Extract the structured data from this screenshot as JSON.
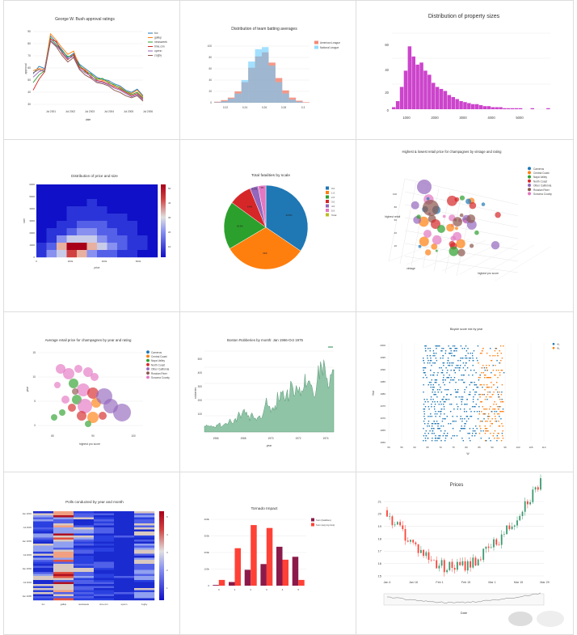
{
  "chart_data": [
    {
      "type": "line",
      "title": "George W. Bush approval ratings",
      "xlabel": "date",
      "ylabel": "approval",
      "yticks": [
        "90",
        "80",
        "70",
        "60",
        "50",
        "40",
        "30"
      ],
      "xticks": [
        "Jul 2001",
        "Jul 2002",
        "Jul 2003",
        "Jul 2004",
        "Jul 2005",
        "Jul 2006"
      ],
      "ylim": [
        25,
        92
      ],
      "series": [
        {
          "name": "fox",
          "color": "#1f77b4",
          "values": [
            53,
            60,
            58,
            88,
            82,
            75,
            68,
            72,
            62,
            58,
            54,
            50,
            48,
            47,
            44,
            42,
            38,
            36,
            39,
            33
          ]
        },
        {
          "name": "gallup",
          "color": "#ff7f0e",
          "values": [
            56,
            58,
            57,
            90,
            84,
            77,
            71,
            74,
            60,
            57,
            52,
            49,
            47,
            46,
            42,
            41,
            37,
            35,
            38,
            32
          ]
        },
        {
          "name": "newsweek",
          "color": "#2ca02c",
          "values": [
            45,
            52,
            56,
            86,
            80,
            74,
            69,
            70,
            61,
            55,
            53,
            48,
            49,
            45,
            43,
            40,
            37,
            34,
            36,
            31
          ]
        },
        {
          "name": "time.cnn",
          "color": "#d62728",
          "values": [
            38,
            48,
            55,
            85,
            83,
            72,
            66,
            71,
            59,
            56,
            50,
            47,
            46,
            44,
            41,
            39,
            36,
            33,
            35,
            30
          ]
        },
        {
          "name": "upenn",
          "color": "#9467bd",
          "values": [
            50,
            55,
            57,
            84,
            79,
            73,
            67,
            69,
            58,
            54,
            51,
            46,
            45,
            43,
            40,
            38,
            35,
            32,
            34,
            29
          ]
        },
        {
          "name": "zogby",
          "color": "#8c564b",
          "values": [
            54,
            57,
            55,
            83,
            78,
            70,
            64,
            68,
            57,
            52,
            49,
            45,
            44,
            42,
            38,
            36,
            33,
            31,
            33,
            28
          ]
        }
      ]
    },
    {
      "type": "bar",
      "title": "Distribution of team batting averages",
      "xticks": [
        "0.22",
        "0.24",
        "0.26",
        "0.28",
        "0.3"
      ],
      "yticks": [
        "100",
        "80",
        "60",
        "40",
        "20",
        "0"
      ],
      "ylim": [
        0,
        110
      ],
      "series": [
        {
          "name": "American League",
          "color": "#ef553b",
          "values": [
            2,
            5,
            10,
            22,
            40,
            68,
            90,
            98,
            78,
            48,
            24,
            10,
            4,
            1
          ]
        },
        {
          "name": "National League",
          "color": "#66ccff",
          "values": [
            1,
            3,
            8,
            18,
            44,
            80,
            104,
            108,
            72,
            40,
            18,
            6,
            2,
            0
          ]
        }
      ]
    },
    {
      "type": "bar",
      "title": "Distribution of property sizes",
      "xticks": [
        "1000",
        "2000",
        "3000",
        "4000",
        "5000"
      ],
      "yticks": [
        "60",
        "40",
        "20",
        "0"
      ],
      "ylim": [
        0,
        75
      ],
      "series": [
        {
          "name": "",
          "color": "#cc44cc",
          "values": [
            2,
            8,
            22,
            38,
            62,
            52,
            44,
            46,
            38,
            34,
            26,
            22,
            20,
            18,
            14,
            12,
            10,
            8,
            7,
            6,
            5,
            5,
            4,
            3,
            3,
            2,
            2,
            2,
            1,
            1,
            1,
            1,
            1,
            0,
            0,
            1,
            0,
            0,
            0,
            1
          ]
        }
      ]
    },
    {
      "type": "heatmap",
      "title": "Distribution of price and size",
      "xlabel": "price",
      "ylabel": "size",
      "xticks": [
        "0",
        "200k",
        "400k",
        "600k"
      ],
      "yticks": [
        "6000",
        "5000",
        "4000",
        "3000",
        "2000",
        "1000",
        "0"
      ],
      "colorbar": [
        "50",
        "40",
        "30",
        "20",
        "10"
      ],
      "values": [
        [
          0,
          0,
          0,
          0,
          0,
          0,
          0,
          0,
          0,
          0,
          0,
          0
        ],
        [
          0,
          0,
          0,
          0,
          0,
          0,
          0,
          0,
          0,
          0,
          0,
          0
        ],
        [
          0,
          0,
          0,
          0,
          0,
          1,
          0,
          0,
          0,
          0,
          0,
          0
        ],
        [
          0,
          0,
          0,
          1,
          1,
          1,
          1,
          0,
          0,
          0,
          0,
          0
        ],
        [
          0,
          0,
          0,
          1,
          2,
          2,
          2,
          1,
          1,
          0,
          0,
          0
        ],
        [
          0,
          0,
          1,
          2,
          3,
          4,
          3,
          2,
          1,
          1,
          0,
          0
        ],
        [
          0,
          1,
          2,
          5,
          7,
          6,
          5,
          3,
          2,
          1,
          0,
          0
        ],
        [
          0,
          2,
          6,
          15,
          18,
          12,
          8,
          5,
          3,
          1,
          1,
          0
        ],
        [
          1,
          5,
          20,
          52,
          45,
          25,
          12,
          6,
          3,
          2,
          1,
          0
        ],
        [
          1,
          6,
          18,
          30,
          20,
          10,
          5,
          3,
          2,
          1,
          0,
          0
        ]
      ]
    },
    {
      "type": "pie",
      "title": "Total fatalities by scale",
      "legend": [
        "0.0",
        "1.0",
        "2.0",
        "3.0",
        "4.0",
        "5.0",
        "Total"
      ],
      "values": [
        34.5,
        32.0,
        18.5,
        8.8,
        3.2,
        3.0
      ],
      "labels": [
        "34.5%",
        "32%",
        "18.5%",
        "8.8%",
        "3.2%",
        "3%"
      ],
      "colors": [
        "#1f77b4",
        "#ff7f0e",
        "#2ca02c",
        "#d62728",
        "#9467bd",
        "#e377c2"
      ]
    },
    {
      "type": "scatter",
      "title": "Highest & lowest retail price for champagnes by vintage and rating",
      "labels": {
        "x": "vintage",
        "y": "highest retail",
        "z": "highest pro score"
      },
      "legend": [
        "Carneros",
        "Central Coast",
        "Napa Valley",
        "North Coast",
        "Other California",
        "Russian River",
        "Sonoma County"
      ],
      "colors": [
        "#1f77b4",
        "#ff7f0e",
        "#2ca02c",
        "#d62728",
        "#9467bd",
        "#8c564b",
        "#e377c2"
      ],
      "yticks": [
        "100",
        "80",
        "60",
        "40",
        "20"
      ]
    },
    {
      "type": "scatter",
      "title": "Average retail price for champagnes by year and rating",
      "xlabel": "highest pro score",
      "ylabel": "year",
      "xticks": [
        "80",
        "90",
        "100"
      ],
      "yticks": [
        "15",
        "10",
        "5",
        "0"
      ],
      "legend": [
        "Carneros",
        "Central Coast",
        "Napa Valley",
        "North Coast",
        "Other California",
        "Russian River",
        "Sonoma County"
      ],
      "colors": [
        "#1f77b4",
        "#ff7f0e",
        "#2ca02c",
        "#d62728",
        "#9467bd",
        "#8c564b",
        "#e377c2"
      ]
    },
    {
      "type": "area",
      "title": "Boston Robberies by month: Jan 1966-Oct 1975",
      "xlabel": "year",
      "ylabel": "robberies",
      "xticks": [
        "1966",
        "1968",
        "1970",
        "1972",
        "1974"
      ],
      "yticks": [
        "500",
        "400",
        "300",
        "200",
        "100"
      ],
      "ylim": [
        0,
        560
      ],
      "values": [
        41,
        39,
        50,
        40,
        43,
        38,
        44,
        35,
        39,
        35,
        29,
        49,
        50,
        59,
        63,
        32,
        39,
        47,
        53,
        60,
        57,
        52,
        70,
        90,
        74,
        62,
        55,
        84,
        94,
        70,
        108,
        139,
        120,
        97,
        126,
        149,
        158,
        124,
        140,
        109,
        114,
        77,
        120,
        133,
        110,
        92,
        97,
        78,
        99,
        107,
        112,
        90,
        98,
        125,
        155,
        190,
        236,
        189,
        174,
        178,
        136,
        161,
        171,
        149,
        184,
        155,
        276,
        224,
        213,
        279,
        268,
        287,
        238,
        213,
        257,
        293,
        212,
        246,
        353,
        339,
        308,
        247,
        257,
        322,
        298,
        273,
        312,
        249,
        286,
        279,
        309,
        401,
        309,
        328,
        353,
        354,
        327,
        324,
        285,
        243,
        241,
        287,
        355,
        460,
        364,
        487,
        452,
        391,
        500,
        451,
        375,
        372,
        302,
        316,
        398,
        394,
        431,
        431
      ]
    },
    {
      "type": "scatter",
      "title": "Bicycle score mix by year",
      "xlabel": "W",
      "ylabel": "Year",
      "xticks": [
        "50",
        "55",
        "60",
        "65",
        "70",
        "75",
        "80",
        "85",
        "90",
        "95",
        "100",
        "105",
        "110"
      ],
      "yticks": [
        "2000",
        "1995",
        "1990",
        "1985",
        "1980",
        "1975",
        "1970",
        "1965",
        "1960"
      ],
      "legend": [
        "AL",
        "NL"
      ],
      "colors": [
        "#1f77b4",
        "#ff7f0e"
      ]
    },
    {
      "type": "heatmap",
      "title": "Polls conducted by year and month",
      "xticks": [
        "fox",
        "gallup",
        "newsweek",
        "time.cnn",
        "upenn",
        "zogby"
      ],
      "yticks": [
        "Jan 2001",
        "Jul 2002",
        "Jan 2003",
        "Jul 2003",
        "Jan 2004",
        "Jul 2004",
        "Jan 2005"
      ],
      "colorbar": [
        "5",
        "4",
        "3",
        "2",
        "1"
      ]
    },
    {
      "type": "bar",
      "title": "Tornado Impact",
      "xticks": [
        "0",
        "1",
        "2",
        "3",
        "4",
        "5"
      ],
      "yticks": [
        "400k",
        "300k",
        "200k",
        "100k",
        "0"
      ],
      "ylim": [
        0,
        460
      ],
      "series": [
        {
          "name": "Sum (fatalities)",
          "color": "#8b1a4a",
          "values": [
            5,
            25,
            110,
            150,
            270,
            200
          ]
        },
        {
          "name": "Sum (avg log loss)",
          "color": "#ff4136",
          "values": [
            40,
            260,
            420,
            400,
            180,
            40
          ]
        }
      ]
    },
    {
      "type": "line",
      "title": "Prices",
      "xlabel": "Date",
      "xticks": [
        "Jan 4\n2004",
        "Jan 18",
        "Feb 1",
        "Feb 15",
        "Mar 1",
        "Mar 15",
        "Mar 29"
      ],
      "yticks": [
        "21",
        "20",
        "19",
        "18",
        "17",
        "16",
        "15"
      ],
      "ylim": [
        14.6,
        21.4
      ]
    }
  ]
}
